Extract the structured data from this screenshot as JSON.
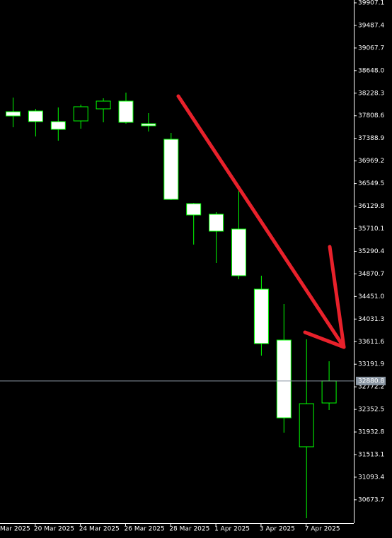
{
  "chart_data": {
    "type": "candlestick",
    "categories": [
      "Mar 2025",
      null,
      "20 Mar 2025",
      null,
      "24 Mar 2025",
      null,
      "26 Mar 2025",
      null,
      "28 Mar 2025",
      null,
      "1 Apr 2025",
      null,
      "3 Apr 2025",
      null,
      "7 Apr 2025",
      null
    ],
    "open": [
      null,
      37884,
      37897,
      37700,
      37713,
      37937,
      38081,
      37661,
      37372,
      36176,
      35979,
      35704,
      34587,
      33641,
      31658,
      32472
    ],
    "high": [
      null,
      38147,
      37937,
      37963,
      38016,
      38134,
      38239,
      37858,
      37490,
      36189,
      36019,
      36439,
      34837,
      34311,
      33654,
      33247
    ],
    "low": [
      null,
      37595,
      37424,
      37346,
      37569,
      37687,
      37661,
      37516,
      36242,
      35415,
      35073,
      34771,
      33352,
      31920,
      30331,
      32341
    ],
    "close": [
      null,
      37805,
      37700,
      37556,
      37976,
      38081,
      37687,
      37622,
      36255,
      35966,
      35664,
      34837,
      33576,
      32196,
      32459,
      32880.8
    ],
    "ylim": [
      30239,
      39959.6
    ],
    "yticks": [
      39907.1,
      39487.4,
      39067.7,
      {
        "value": 38648,
        "label": "38648.0"
      },
      38228.3,
      37808.6,
      37388.9,
      36969.2,
      36549.5,
      36129.8,
      35710.1,
      35290.4,
      34870.7,
      {
        "value": 34451,
        "label": "34451.0"
      },
      34031.3,
      33611.6,
      33191.9,
      32772.2,
      32352.5,
      31932.8,
      31513.1,
      31093.4,
      30673.7
    ],
    "current_price": 32880.8,
    "up_color": "#000000",
    "down_color": "#ffffff",
    "outline_color": "#00ff00",
    "grid": false
  }
}
